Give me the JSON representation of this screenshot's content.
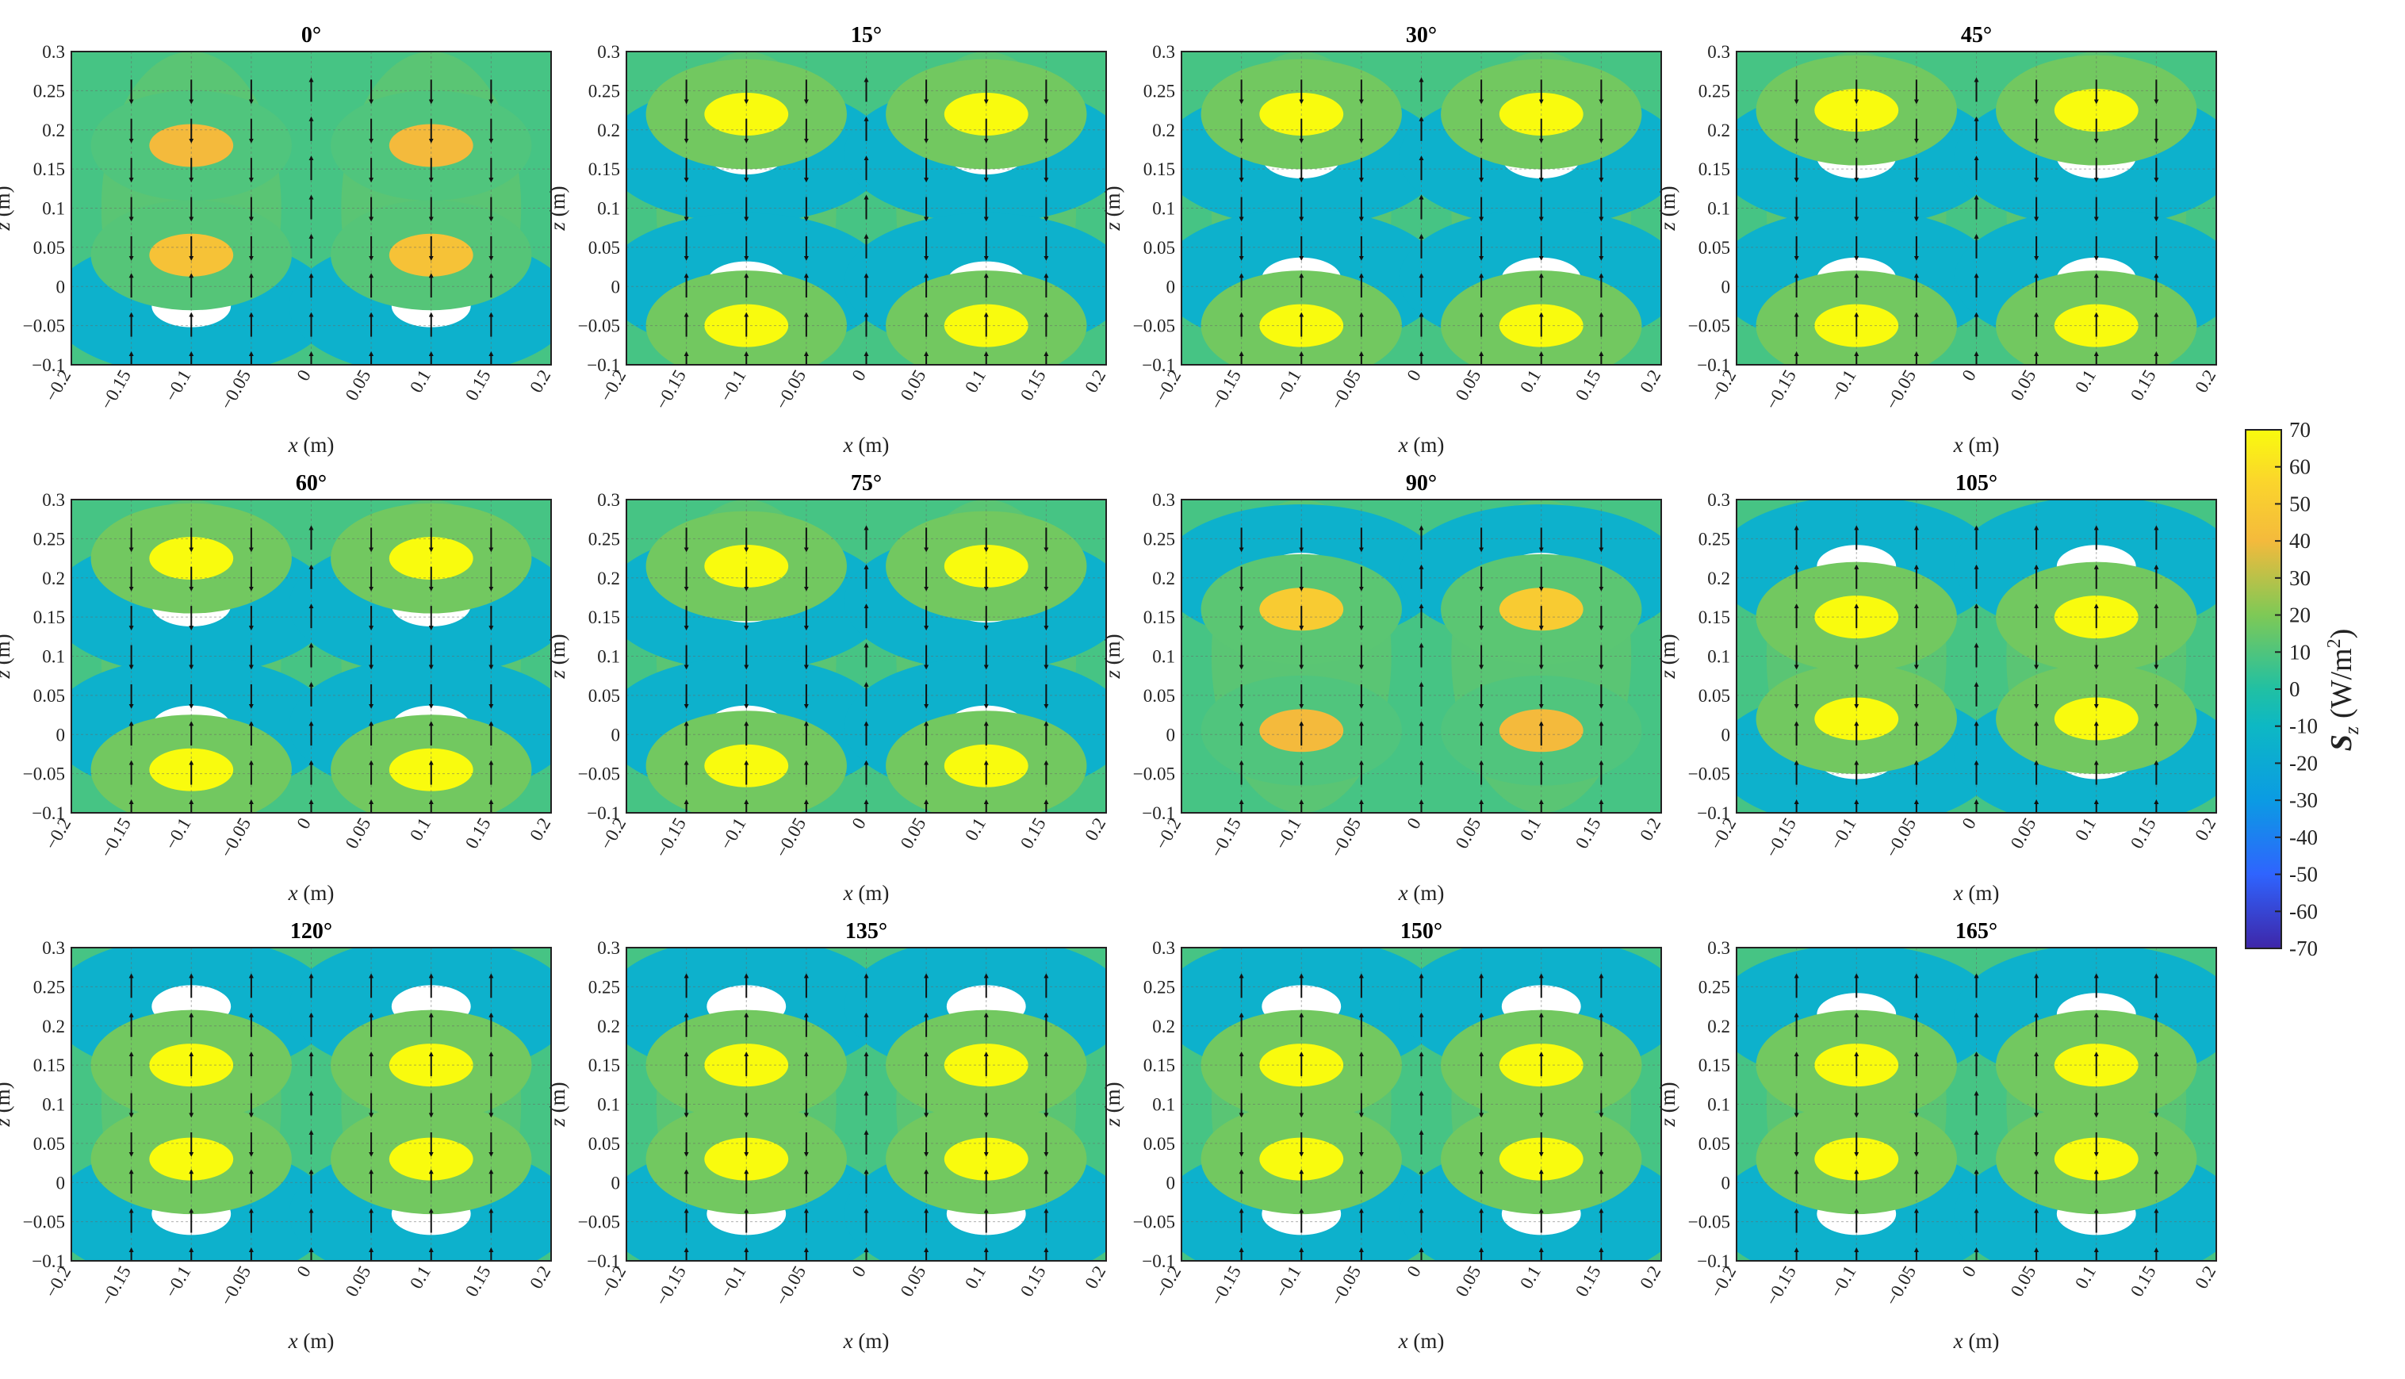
{
  "figure": {
    "xlabel_var": "x",
    "xlabel_unit": "(m)",
    "ylabel_var": "z",
    "ylabel_unit": "(m)",
    "colorbar_var": "S",
    "colorbar_sub": "z",
    "colorbar_unit": "(W/m",
    "colorbar_unit_sup": "2",
    "colorbar_unit_end": ")"
  },
  "chart_data": {
    "type": "heatmap",
    "panels": [
      "0°",
      "15°",
      "30°",
      "45°",
      "60°",
      "75°",
      "90°",
      "105°",
      "120°",
      "135°",
      "150°",
      "165°"
    ],
    "grid": {
      "rows": 3,
      "cols": 4
    },
    "xlim": [
      -0.2,
      0.2
    ],
    "ylim": [
      -0.1,
      0.3
    ],
    "xticks": [
      "-0.2",
      "-0.15",
      "-0.1",
      "-0.05",
      "0",
      "0.05",
      "0.1",
      "0.15",
      "0.2"
    ],
    "yticks": [
      "0.3",
      "0.25",
      "0.2",
      "0.15",
      "0.1",
      "0.05",
      "0",
      "-0.05",
      "-0.1"
    ],
    "xlabel": "x (m)",
    "ylabel": "z (m)",
    "colorbar": {
      "label": "Sz (W/m2)",
      "range": [
        -70,
        70
      ],
      "ticks": [
        "70",
        "60",
        "50",
        "40",
        "30",
        "20",
        "10",
        "0",
        "-10",
        "-20",
        "-30",
        "-40",
        "-50",
        "-60",
        "-70"
      ],
      "colormap": "parula"
    },
    "grid_lines": true,
    "sources_x": [
      -0.1,
      0.1
    ],
    "features": [
      {
        "angle": "0°",
        "peaks": [
          {
            "z": 0.18,
            "value": 40
          },
          {
            "z": 0.04,
            "value": 45
          }
        ],
        "troughs": [
          {
            "z": -0.025,
            "value": -70
          }
        ]
      },
      {
        "angle": "15°",
        "peaks": [
          {
            "z": 0.22,
            "value": 70
          },
          {
            "z": -0.05,
            "value": 70
          }
        ],
        "troughs": [
          {
            "z": 0.17,
            "value": -70
          },
          {
            "z": 0.005,
            "value": -70
          }
        ]
      },
      {
        "angle": "30°",
        "peaks": [
          {
            "z": 0.22,
            "value": 70
          },
          {
            "z": -0.05,
            "value": 70
          }
        ],
        "troughs": [
          {
            "z": 0.165,
            "value": -70
          },
          {
            "z": 0.01,
            "value": -70
          }
        ]
      },
      {
        "angle": "45°",
        "peaks": [
          {
            "z": 0.225,
            "value": 70
          },
          {
            "z": -0.05,
            "value": 70
          }
        ],
        "troughs": [
          {
            "z": 0.165,
            "value": -70
          },
          {
            "z": 0.01,
            "value": -70
          }
        ]
      },
      {
        "angle": "60°",
        "peaks": [
          {
            "z": 0.225,
            "value": 70
          },
          {
            "z": -0.045,
            "value": 70
          }
        ],
        "troughs": [
          {
            "z": 0.165,
            "value": -70
          },
          {
            "z": 0.01,
            "value": -70
          }
        ]
      },
      {
        "angle": "75°",
        "peaks": [
          {
            "z": 0.215,
            "value": 70
          },
          {
            "z": -0.04,
            "value": 70
          }
        ],
        "troughs": [
          {
            "z": 0.17,
            "value": -70
          },
          {
            "z": 0.01,
            "value": -70
          }
        ]
      },
      {
        "angle": "90°",
        "peaks": [
          {
            "z": 0.16,
            "value": 50
          },
          {
            "z": 0.005,
            "value": 40
          }
        ],
        "troughs": [
          {
            "z": 0.205,
            "value": -70
          }
        ]
      },
      {
        "angle": "105°",
        "peaks": [
          {
            "z": 0.15,
            "value": 70
          },
          {
            "z": 0.02,
            "value": 70
          }
        ],
        "troughs": [
          {
            "z": 0.215,
            "value": -70
          },
          {
            "z": -0.03,
            "value": -70
          }
        ]
      },
      {
        "angle": "120°",
        "peaks": [
          {
            "z": 0.15,
            "value": 70
          },
          {
            "z": 0.03,
            "value": 70
          }
        ],
        "troughs": [
          {
            "z": 0.225,
            "value": -70
          },
          {
            "z": -0.04,
            "value": -70
          }
        ]
      },
      {
        "angle": "135°",
        "peaks": [
          {
            "z": 0.15,
            "value": 70
          },
          {
            "z": 0.03,
            "value": 70
          }
        ],
        "troughs": [
          {
            "z": 0.225,
            "value": -70
          },
          {
            "z": -0.04,
            "value": -70
          }
        ]
      },
      {
        "angle": "150°",
        "peaks": [
          {
            "z": 0.15,
            "value": 70
          },
          {
            "z": 0.03,
            "value": 70
          }
        ],
        "troughs": [
          {
            "z": 0.225,
            "value": -70
          },
          {
            "z": -0.04,
            "value": -70
          }
        ]
      },
      {
        "angle": "165°",
        "peaks": [
          {
            "z": 0.15,
            "value": 70
          },
          {
            "z": 0.03,
            "value": 70
          }
        ],
        "troughs": [
          {
            "z": 0.215,
            "value": -70
          },
          {
            "z": -0.04,
            "value": -70
          }
        ]
      }
    ]
  }
}
